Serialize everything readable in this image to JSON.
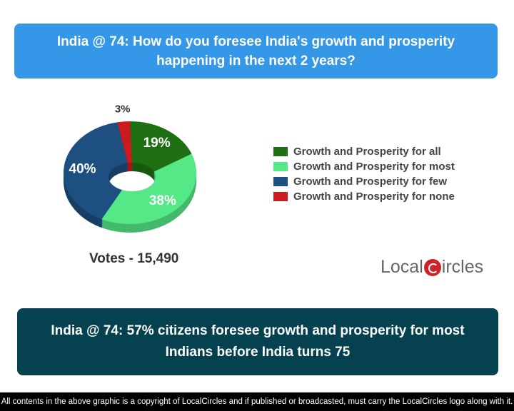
{
  "question": "India @ 74: How do you foresee India's growth and prosperity happening in the next 2 years?",
  "chart_data": {
    "type": "pie",
    "categories": [
      "Growth and Prosperity for all",
      "Growth and Prosperity for most",
      "Growth and Prosperity for few",
      "Growth and Prosperity for none"
    ],
    "values": [
      19,
      38,
      40,
      3
    ],
    "labels": [
      "19%",
      "38%",
      "40%",
      "3%"
    ],
    "colors": [
      "#1e6e12",
      "#55e887",
      "#1d4f80",
      "#cc1a1f"
    ],
    "legend": "right"
  },
  "votes": "Votes - 15,490",
  "logo": "LocalCircles",
  "answer": "India @ 74: 57% citizens foresee growth and prosperity for most Indians before India turns 75",
  "footer": "All contents in the above graphic is a copyright of LocalCircles and if published or broadcasted, must carry the LocalCircles logo along with it."
}
